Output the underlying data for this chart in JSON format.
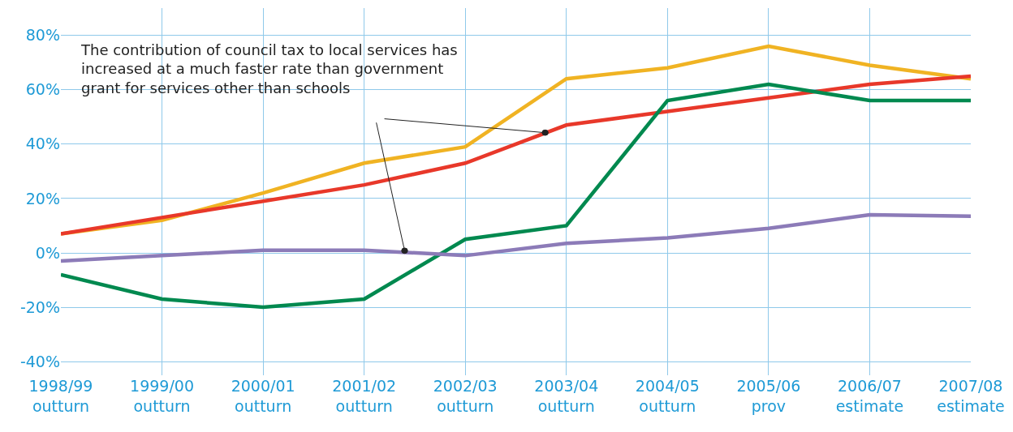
{
  "chart_data": {
    "type": "line",
    "categories": [
      "1998/99\noutturn",
      "1999/00\noutturn",
      "2000/01\noutturn",
      "2001/02\noutturn",
      "2002/03\noutturn",
      "2003/04\noutturn",
      "2004/05\noutturn",
      "2005/06\nprov",
      "2006/07\nestimate",
      "2007/08\nestimate"
    ],
    "series": [
      {
        "color": "#f0b323",
        "values": [
          7,
          12,
          22,
          33,
          39,
          64,
          68,
          76,
          69,
          64
        ]
      },
      {
        "color": "#e8382a",
        "values": [
          7,
          13,
          19,
          25,
          33,
          47,
          52,
          57,
          62,
          65
        ]
      },
      {
        "color": "#00894f",
        "values": [
          -8,
          -17,
          -20,
          -17,
          5,
          10,
          56,
          62,
          56,
          56
        ]
      },
      {
        "color": "#8c7bb8",
        "values": [
          -3,
          -1,
          1,
          1,
          -1,
          3.5,
          5.5,
          9,
          14,
          13.5
        ]
      }
    ],
    "ylim": [
      -45,
      90
    ],
    "yticks": [
      {
        "value": 80,
        "label": "80%"
      },
      {
        "value": 60,
        "label": "60%"
      },
      {
        "value": 40,
        "label": "40%"
      },
      {
        "value": 20,
        "label": "20%"
      },
      {
        "value": 0,
        "label": "0%"
      },
      {
        "value": -20,
        "label": "-20%"
      },
      {
        "value": -40,
        "label": "-40%"
      }
    ],
    "grid": true,
    "marker": "none",
    "line_style": "solid",
    "annotations": [
      "The contribution of council tax to local services has\nincreased at a much faster rate than government\ngrant for services other than schools"
    ]
  }
}
